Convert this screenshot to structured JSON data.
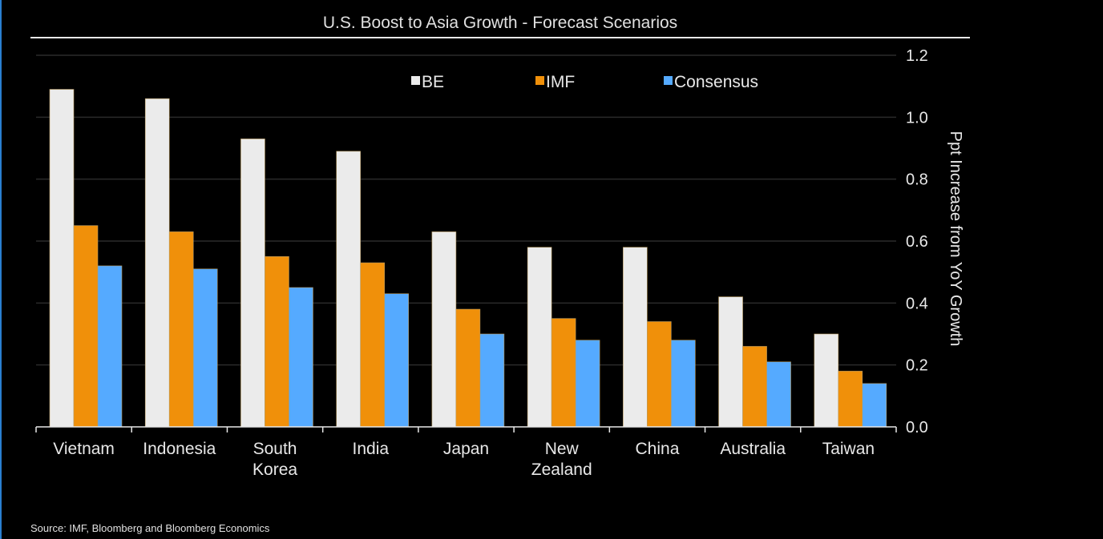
{
  "chart_data": {
    "type": "bar",
    "title": "U.S. Boost to Asia Growth - Forecast Scenarios",
    "ylabel": "Ppt Increase from YoY Growth",
    "xlabel": "",
    "ylim": [
      0,
      1.2
    ],
    "yticks": [
      "0.0",
      "0.2",
      "0.4",
      "0.6",
      "0.8",
      "1.0",
      "1.2"
    ],
    "y_axis_side": "right",
    "grid": true,
    "legend_position": "top-center",
    "categories": [
      [
        "Vietnam"
      ],
      [
        "Indonesia"
      ],
      [
        "South",
        "Korea"
      ],
      [
        "India"
      ],
      [
        "Japan"
      ],
      [
        "New",
        "Zealand"
      ],
      [
        "China"
      ],
      [
        "Australia"
      ],
      [
        "Taiwan"
      ]
    ],
    "series": [
      {
        "name": "BE",
        "color": "#ebebeb",
        "values": [
          1.09,
          1.06,
          0.93,
          0.89,
          0.63,
          0.58,
          0.58,
          0.42,
          0.3
        ]
      },
      {
        "name": "IMF",
        "color": "#f0900a",
        "values": [
          0.65,
          0.63,
          0.55,
          0.53,
          0.38,
          0.35,
          0.34,
          0.26,
          0.18
        ]
      },
      {
        "name": "Consensus",
        "color": "#55aaff",
        "values": [
          0.52,
          0.51,
          0.45,
          0.43,
          0.3,
          0.28,
          0.28,
          0.21,
          0.14
        ]
      }
    ]
  },
  "source": "Source: IMF, Bloomberg and Bloomberg Economics"
}
